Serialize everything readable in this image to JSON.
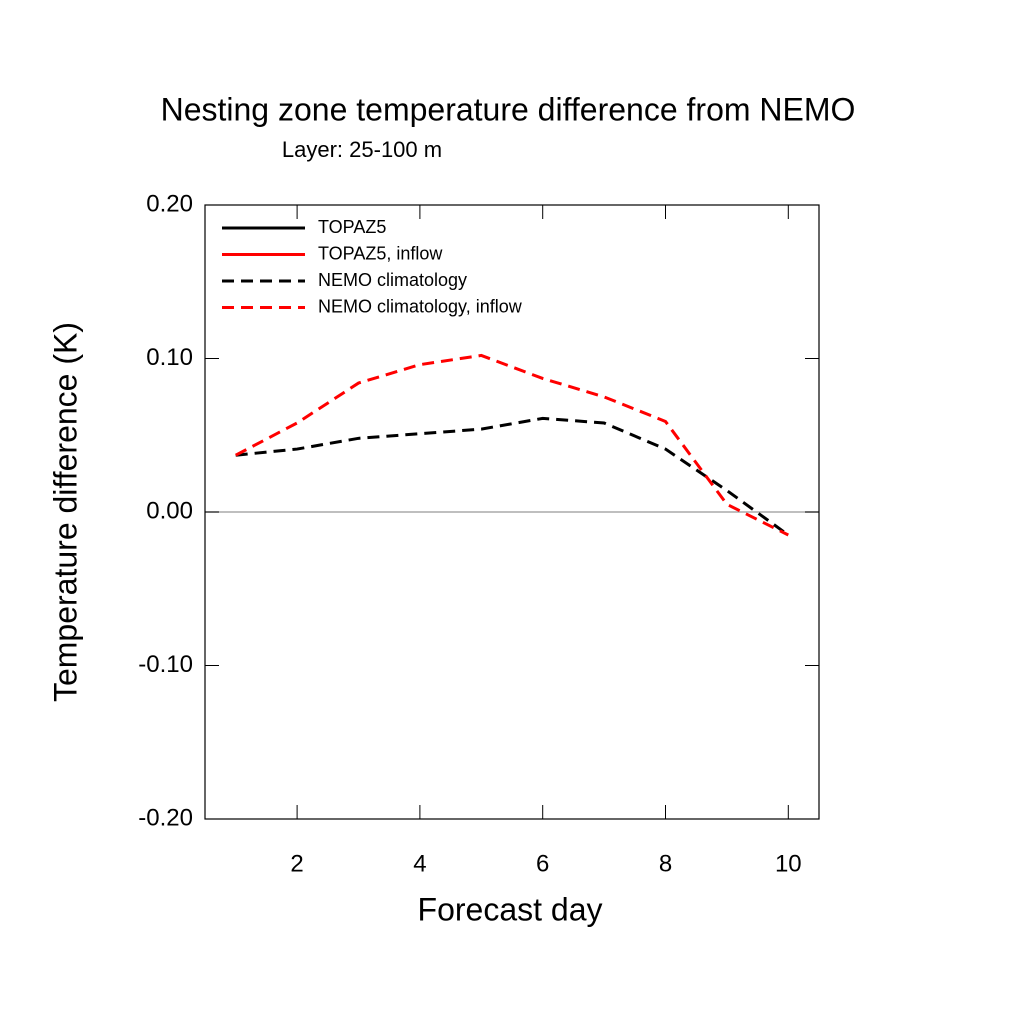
{
  "chart_data": {
    "type": "line",
    "title": "Nesting zone temperature difference from NEMO",
    "subtitle": "Layer: 25-100 m",
    "xlabel": "Forecast day",
    "ylabel": "Temperature difference (K)",
    "x": [
      1,
      2,
      3,
      4,
      5,
      6,
      7,
      8,
      9,
      10
    ],
    "series": [
      {
        "name": "TOPAZ5",
        "color": "#000000",
        "dash": false,
        "values": [
          null,
          null,
          null,
          null,
          null,
          null,
          null,
          null,
          null,
          null
        ]
      },
      {
        "name": "TOPAZ5, inflow",
        "color": "#ff0000",
        "dash": false,
        "values": [
          null,
          null,
          null,
          null,
          null,
          null,
          null,
          null,
          null,
          null
        ]
      },
      {
        "name": "NEMO climatology",
        "color": "#000000",
        "dash": true,
        "values": [
          0.037,
          0.041,
          0.048,
          0.051,
          0.054,
          0.061,
          0.058,
          0.041,
          0.014,
          -0.015
        ]
      },
      {
        "name": "NEMO climatology, inflow",
        "color": "#ff0000",
        "dash": true,
        "values": [
          0.037,
          0.058,
          0.084,
          0.096,
          0.102,
          0.087,
          0.075,
          0.059,
          0.005,
          -0.015
        ]
      }
    ],
    "xlim": [
      0.5,
      10.5
    ],
    "ylim": [
      -0.2,
      0.2
    ],
    "xticks": [
      2,
      4,
      6,
      8,
      10
    ],
    "yticks": [
      {
        "value": 0.2,
        "label": "0.20"
      },
      {
        "value": 0.1,
        "label": "0.10"
      },
      {
        "value": 0,
        "label": "0.00"
      },
      {
        "value": -0.1,
        "label": "-0.10"
      },
      {
        "value": -0.2,
        "label": "-0.20"
      }
    ],
    "reference_line": 0,
    "legend": "upper left"
  }
}
